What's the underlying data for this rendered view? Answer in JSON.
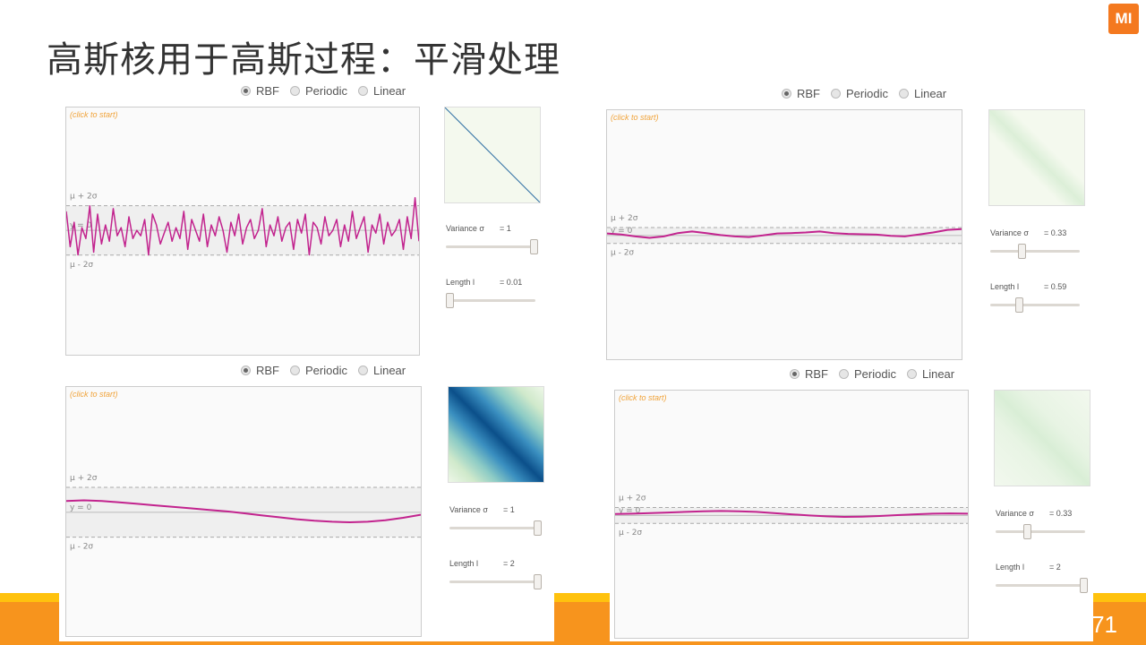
{
  "slide": {
    "title": "高斯核用于高斯过程：平滑处理",
    "logo_text": "MI",
    "page_number": "71",
    "colors": {
      "accent": "#f7941d",
      "accent_light": "#ffc20e",
      "curve": "#c2238e"
    }
  },
  "panels": [
    {
      "kernel_options": [
        "RBF",
        "Periodic",
        "Linear"
      ],
      "selected_kernel": "RBF",
      "click_hint": "(click to start)",
      "band_labels": {
        "upper": "μ + 2σ",
        "mean": "y = 0",
        "lower": "μ - 2σ"
      },
      "variance_label": "Variance σ",
      "variance_value": "= 1",
      "variance_fraction": 1.0,
      "length_label": "Length l",
      "length_value": "= 0.01",
      "length_fraction": 0.0,
      "covariance_style": "diagonal-line",
      "sample": [
        0.7,
        -0.6,
        0.3,
        -0.9,
        0.1,
        -0.3,
        0.9,
        -0.8,
        0.6,
        -0.5,
        0.2,
        -0.4,
        0.8,
        -0.2,
        0.1,
        -0.6,
        0.5,
        -0.3,
        0.0,
        -0.2,
        0.4,
        -0.9,
        0.6,
        0.2,
        -0.5,
        -0.1,
        0.3,
        -0.4,
        0.1,
        -0.3,
        0.7,
        -0.7,
        0.4,
        0.0,
        -0.4,
        0.6,
        -0.6,
        0.2,
        -0.2,
        0.5,
        0.0,
        -0.8,
        0.3,
        -0.2,
        0.6,
        -0.5,
        0.1,
        0.4,
        -0.3,
        0.0,
        0.8,
        -0.6,
        0.2,
        -0.2,
        0.5,
        -0.4,
        0.1,
        0.3,
        -0.7,
        0.4,
        -0.1,
        0.6,
        -0.9,
        0.3,
        0.1,
        -0.5,
        0.5,
        -0.2,
        0.0,
        0.4,
        -0.6,
        0.2,
        -0.4,
        0.7,
        -0.3,
        0.1,
        0.5,
        -0.8,
        0.2,
        -0.1,
        0.6,
        -0.5,
        0.3,
        -0.2,
        0.0,
        0.4,
        -0.7,
        0.5,
        -0.3,
        1.2,
        -0.4
      ]
    },
    {
      "kernel_options": [
        "RBF",
        "Periodic",
        "Linear"
      ],
      "selected_kernel": "RBF",
      "click_hint": "(click to start)",
      "band_labels": {
        "upper": "μ + 2σ",
        "mean": "y = 0",
        "lower": "μ - 2σ"
      },
      "variance_label": "Variance σ",
      "variance_value": "= 0.33",
      "variance_fraction": 0.33,
      "length_label": "Length l",
      "length_value": "= 0.59",
      "length_fraction": 0.3,
      "covariance_style": "faint-band",
      "sample": [
        0.1,
        0.05,
        -0.05,
        -0.12,
        -0.05,
        0.12,
        0.2,
        0.12,
        0.02,
        -0.05,
        -0.08,
        0.0,
        0.1,
        0.12,
        0.15,
        0.2,
        0.12,
        0.08,
        0.06,
        0.04,
        -0.02,
        -0.05,
        0.05,
        0.15,
        0.28,
        0.32
      ]
    },
    {
      "kernel_options": [
        "RBF",
        "Periodic",
        "Linear"
      ],
      "selected_kernel": "RBF",
      "click_hint": "(click to start)",
      "band_labels": {
        "upper": "μ + 2σ",
        "mean": "y = 0",
        "lower": "μ - 2σ"
      },
      "variance_label": "Variance σ",
      "variance_value": "= 1",
      "variance_fraction": 1.0,
      "length_label": "Length l",
      "length_value": "= 2",
      "length_fraction": 1.0,
      "covariance_style": "strong-band",
      "sample": [
        0.45,
        0.48,
        0.45,
        0.4,
        0.34,
        0.28,
        0.22,
        0.16,
        0.1,
        0.04,
        -0.04,
        -0.12,
        -0.2,
        -0.28,
        -0.34,
        -0.38,
        -0.4,
        -0.38,
        -0.32,
        -0.22,
        -0.1
      ]
    },
    {
      "kernel_options": [
        "RBF",
        "Periodic",
        "Linear"
      ],
      "selected_kernel": "RBF",
      "click_hint": "(click to start)",
      "band_labels": {
        "upper": "μ + 2σ",
        "mean": "y = 0",
        "lower": "μ - 2σ"
      },
      "variance_label": "Variance σ",
      "variance_value": "= 0.33",
      "variance_fraction": 0.33,
      "length_label": "Length l",
      "length_value": "= 2",
      "length_fraction": 1.0,
      "covariance_style": "faint-band-wide",
      "sample": [
        0.05,
        0.06,
        0.08,
        0.1,
        0.12,
        0.14,
        0.15,
        0.14,
        0.12,
        0.08,
        0.04,
        0.0,
        -0.03,
        -0.05,
        -0.04,
        -0.02,
        0.01,
        0.04,
        0.06,
        0.07,
        0.06
      ]
    }
  ]
}
